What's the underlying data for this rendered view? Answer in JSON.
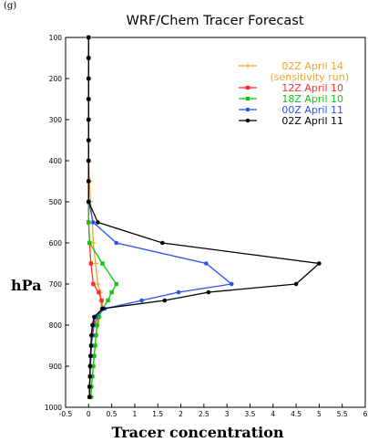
{
  "panel_label": "(g)",
  "chart_data": {
    "type": "line",
    "title": "WRF/Chem Tracer Forecast",
    "xlabel": "Tracer concentration",
    "ylabel": "hPa",
    "xlim": [
      -0.5,
      6
    ],
    "ylim": [
      1000,
      100
    ],
    "y_reversed": true,
    "xticks": [
      -0.5,
      0,
      0.5,
      1,
      1.5,
      2,
      2.5,
      3,
      3.5,
      4,
      4.5,
      5,
      5.5,
      6
    ],
    "xtick_labels": [
      "-0.5",
      "0",
      "0.5",
      "1",
      "1.5",
      "2",
      "2.5",
      "3",
      "3.5",
      "4",
      "4.5",
      "5",
      "5.5",
      "6"
    ],
    "yticks": [
      100,
      200,
      300,
      400,
      500,
      600,
      700,
      800,
      900,
      1000
    ],
    "ytick_labels": [
      "100",
      "200",
      "300",
      "400",
      "500",
      "600",
      "700",
      "800",
      "900",
      "1000"
    ],
    "grid": false,
    "legend_position": "top-right",
    "series": [
      {
        "name": "02Z April 14",
        "name_line2": "(sensitivity run)",
        "color": "#e8a62a",
        "marker": "plus",
        "points": [
          [
            0,
            100
          ],
          [
            0,
            150
          ],
          [
            0,
            200
          ],
          [
            0,
            250
          ],
          [
            0,
            300
          ],
          [
            0,
            350
          ],
          [
            0,
            400
          ],
          [
            0.02,
            450
          ],
          [
            0.04,
            500
          ],
          [
            0.08,
            550
          ],
          [
            0.1,
            600
          ],
          [
            0.15,
            650
          ],
          [
            0.2,
            700
          ],
          [
            0.25,
            720
          ],
          [
            0.27,
            740
          ],
          [
            0.28,
            760
          ],
          [
            0.24,
            780
          ],
          [
            0.2,
            800
          ],
          [
            0.16,
            825
          ],
          [
            0.14,
            850
          ],
          [
            0.12,
            875
          ],
          [
            0.1,
            900
          ],
          [
            0.08,
            925
          ],
          [
            0.06,
            950
          ],
          [
            0.05,
            975
          ]
        ]
      },
      {
        "name": "12Z April 10",
        "color": "#ff2a2a",
        "marker": "square",
        "points": [
          [
            0,
            100
          ],
          [
            0,
            150
          ],
          [
            0,
            200
          ],
          [
            0,
            250
          ],
          [
            0,
            300
          ],
          [
            0,
            350
          ],
          [
            0,
            400
          ],
          [
            0,
            450
          ],
          [
            0,
            500
          ],
          [
            0,
            550
          ],
          [
            0.02,
            600
          ],
          [
            0.05,
            650
          ],
          [
            0.1,
            700
          ],
          [
            0.22,
            720
          ],
          [
            0.28,
            740
          ],
          [
            0.3,
            760
          ],
          [
            0.2,
            780
          ],
          [
            0.12,
            800
          ],
          [
            0.08,
            825
          ],
          [
            0.06,
            850
          ],
          [
            0.05,
            875
          ],
          [
            0.04,
            900
          ],
          [
            0.03,
            925
          ],
          [
            0.02,
            950
          ],
          [
            0.02,
            975
          ]
        ]
      },
      {
        "name": "18Z April 10",
        "color": "#11c511",
        "marker": "square",
        "points": [
          [
            0,
            500
          ],
          [
            0.0,
            550
          ],
          [
            0.02,
            600
          ],
          [
            0.3,
            650
          ],
          [
            0.6,
            700
          ],
          [
            0.5,
            720
          ],
          [
            0.42,
            740
          ],
          [
            0.3,
            760
          ],
          [
            0.22,
            780
          ],
          [
            0.18,
            800
          ],
          [
            0.16,
            825
          ],
          [
            0.14,
            850
          ],
          [
            0.12,
            875
          ],
          [
            0.1,
            900
          ],
          [
            0.08,
            925
          ],
          [
            0.06,
            950
          ],
          [
            0.05,
            975
          ]
        ]
      },
      {
        "name": "00Z April 11",
        "color": "#2a4ff5",
        "marker": "circle",
        "points": [
          [
            0,
            100
          ],
          [
            0,
            150
          ],
          [
            0,
            200
          ],
          [
            0,
            250
          ],
          [
            0,
            300
          ],
          [
            0,
            350
          ],
          [
            0,
            400
          ],
          [
            0,
            450
          ],
          [
            0,
            500
          ],
          [
            0.1,
            550
          ],
          [
            0.6,
            600
          ],
          [
            2.55,
            650
          ],
          [
            3.1,
            700
          ],
          [
            1.95,
            720
          ],
          [
            1.15,
            740
          ],
          [
            0.35,
            760
          ],
          [
            0.15,
            780
          ],
          [
            0.1,
            800
          ],
          [
            0.08,
            825
          ],
          [
            0.06,
            850
          ],
          [
            0.05,
            875
          ],
          [
            0.04,
            900
          ],
          [
            0.03,
            925
          ],
          [
            0.02,
            950
          ],
          [
            0.02,
            975
          ]
        ]
      },
      {
        "name": "02Z April 11",
        "color": "#000000",
        "marker": "circle",
        "points": [
          [
            0,
            100
          ],
          [
            0,
            150
          ],
          [
            0,
            200
          ],
          [
            0,
            250
          ],
          [
            0,
            300
          ],
          [
            0,
            350
          ],
          [
            0,
            400
          ],
          [
            0,
            450
          ],
          [
            0,
            500
          ],
          [
            0.2,
            550
          ],
          [
            1.6,
            600
          ],
          [
            5.0,
            650
          ],
          [
            4.5,
            700
          ],
          [
            2.6,
            720
          ],
          [
            1.65,
            740
          ],
          [
            0.3,
            760
          ],
          [
            0.12,
            780
          ],
          [
            0.08,
            800
          ],
          [
            0.06,
            825
          ],
          [
            0.05,
            850
          ],
          [
            0.04,
            875
          ],
          [
            0.03,
            900
          ],
          [
            0.03,
            925
          ],
          [
            0.02,
            950
          ],
          [
            0.02,
            975
          ]
        ]
      }
    ]
  }
}
